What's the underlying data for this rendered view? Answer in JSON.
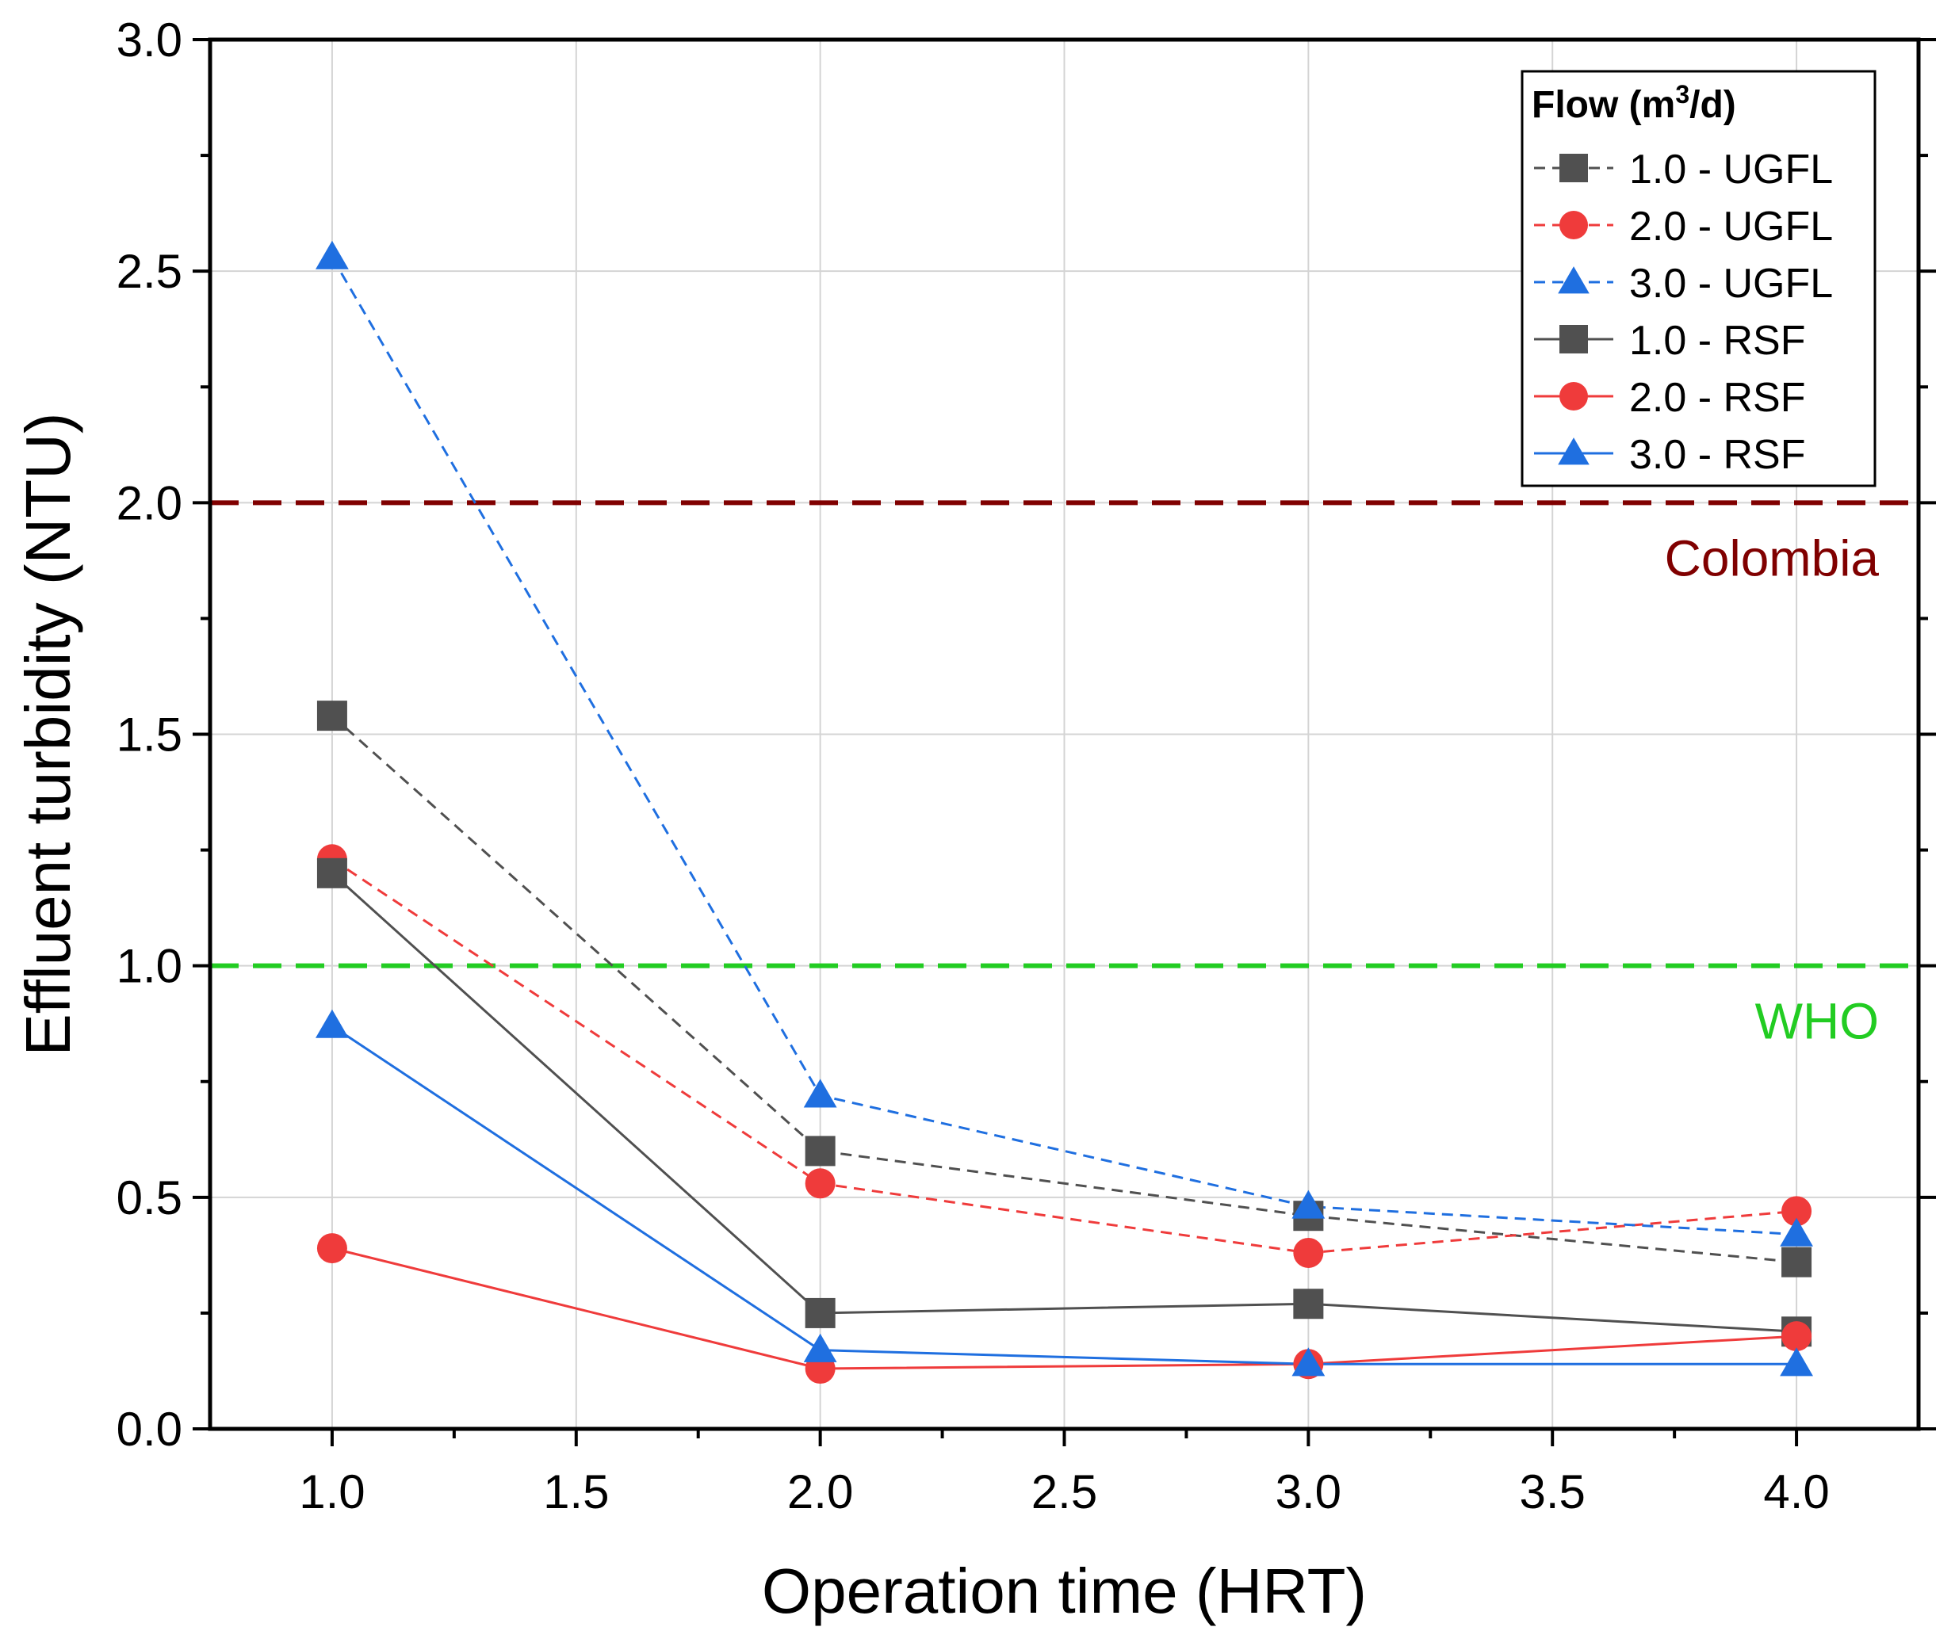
{
  "chart_data": {
    "type": "line",
    "xlabel": "Operation time (HRT)",
    "ylabel": "Effluent turbidity (NTU)",
    "xlim": [
      0.75,
      4.25
    ],
    "ylim": [
      0,
      3.0
    ],
    "x_ticks": [
      "1.0",
      "1.5",
      "2.0",
      "2.5",
      "3.0",
      "3.5",
      "4.0"
    ],
    "y_ticks": [
      "0.0",
      "0.5",
      "1.0",
      "1.5",
      "2.0",
      "2.5",
      "3.0"
    ],
    "grid": true,
    "legend": {
      "title_main": "Flow (m",
      "title_sup": "3",
      "title_end": "/d)",
      "placement": "top-right"
    },
    "x": [
      1.0,
      2.0,
      3.0,
      4.0
    ],
    "series": [
      {
        "name": "1.0 - UGFL",
        "values": [
          1.54,
          0.6,
          0.46,
          0.36
        ],
        "color": "#505050",
        "dash": "dashed",
        "marker": "square"
      },
      {
        "name": "2.0 - UGFL",
        "values": [
          1.23,
          0.53,
          0.38,
          0.47
        ],
        "color": "#ef3b3b",
        "dash": "dashed",
        "marker": "circle"
      },
      {
        "name": "3.0 - UGFL",
        "values": [
          2.53,
          0.72,
          0.48,
          0.42
        ],
        "color": "#1f6fe0",
        "dash": "dashed",
        "marker": "triangle"
      },
      {
        "name": "1.0 - RSF",
        "values": [
          1.2,
          0.25,
          0.27,
          0.21
        ],
        "color": "#505050",
        "dash": "solid",
        "marker": "square"
      },
      {
        "name": "2.0 - RSF",
        "values": [
          0.39,
          0.13,
          0.14,
          0.2
        ],
        "color": "#ef3b3b",
        "dash": "solid",
        "marker": "circle"
      },
      {
        "name": "3.0 - RSF",
        "values": [
          0.87,
          0.17,
          0.14,
          0.14
        ],
        "color": "#1f6fe0",
        "dash": "solid",
        "marker": "triangle"
      }
    ],
    "reference_lines": [
      {
        "label": "Colombia",
        "value": 2.0,
        "color": "#800000"
      },
      {
        "label": "WHO",
        "value": 1.0,
        "color": "#22cc22"
      }
    ]
  }
}
